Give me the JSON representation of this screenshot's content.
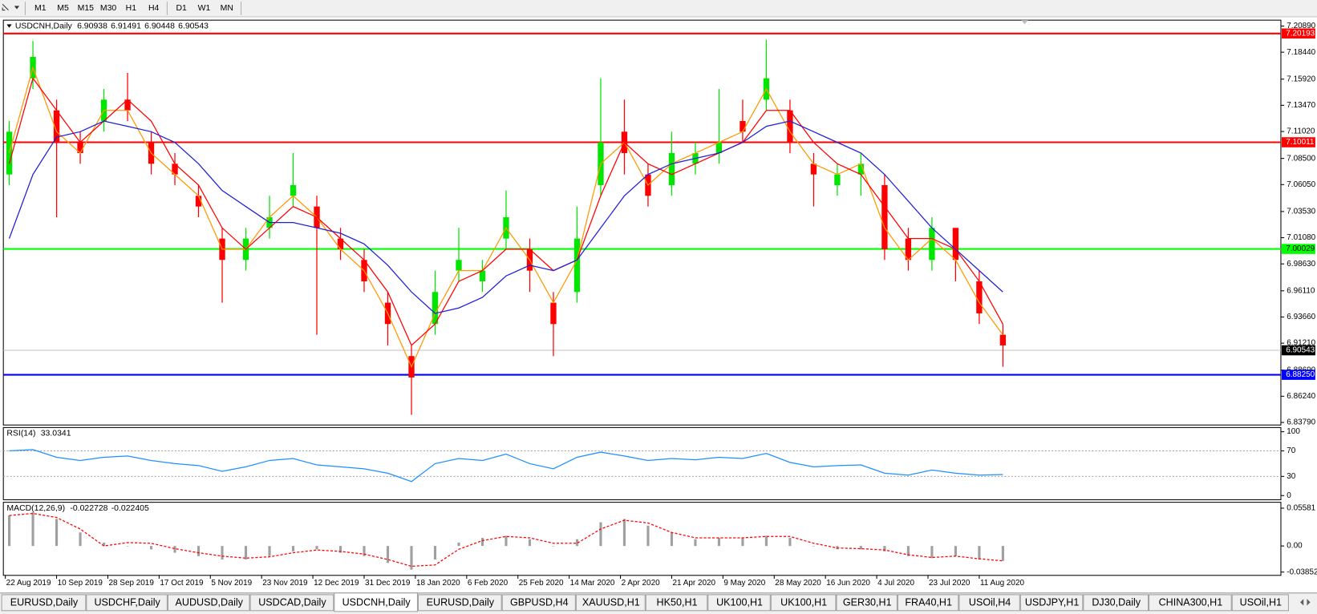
{
  "toolbar": {
    "periods": [
      "M1",
      "M5",
      "M15",
      "M30",
      "H1",
      "H4",
      "D1",
      "W1",
      "MN"
    ]
  },
  "chart_data": [
    {
      "type": "candlestick",
      "title": "USDCNH,Daily",
      "header_values": [
        6.90938,
        6.91491,
        6.90448,
        6.90543
      ],
      "x": [
        1,
        7,
        13,
        19,
        25,
        31,
        37,
        43,
        49,
        55,
        61,
        67,
        73,
        79,
        85,
        91,
        97,
        103,
        109,
        115,
        121,
        127,
        133,
        139,
        145,
        151,
        157,
        163,
        169,
        175,
        181,
        187,
        193,
        199,
        205,
        211,
        217,
        223,
        229,
        235,
        241,
        247,
        253
      ],
      "open": [
        7.07,
        7.16,
        7.13,
        7.1,
        7.12,
        7.14,
        7.1,
        7.08,
        7.05,
        7.01,
        6.99,
        7.02,
        7.05,
        7.04,
        7.01,
        6.99,
        6.95,
        6.9,
        6.93,
        6.98,
        6.97,
        7.01,
        7.0,
        6.95,
        6.96,
        7.06,
        7.11,
        7.07,
        7.06,
        7.08,
        7.09,
        7.12,
        7.14,
        7.13,
        7.08,
        7.06,
        7.07,
        7.06,
        7.01,
        6.99,
        7.02,
        6.97,
        6.92
      ],
      "high": [
        7.12,
        7.195,
        7.14,
        7.11,
        7.15,
        7.165,
        7.11,
        7.09,
        7.06,
        7.02,
        7.02,
        7.05,
        7.09,
        7.05,
        7.02,
        7.0,
        6.96,
        6.91,
        6.98,
        7.02,
        6.99,
        7.055,
        7.01,
        6.96,
        7.04,
        7.16,
        7.14,
        7.08,
        7.11,
        7.1,
        7.15,
        7.14,
        7.196,
        7.14,
        7.09,
        7.08,
        7.09,
        7.07,
        7.02,
        7.03,
        7.02,
        6.98,
        6.93
      ],
      "low": [
        7.06,
        7.15,
        7.03,
        7.08,
        7.11,
        7.12,
        7.07,
        7.06,
        7.03,
        6.95,
        6.98,
        7.01,
        7.04,
        6.92,
        6.99,
        6.96,
        6.91,
        6.845,
        6.92,
        6.97,
        6.96,
        7.0,
        6.96,
        6.9,
        6.95,
        7.05,
        7.07,
        7.04,
        7.05,
        7.07,
        7.08,
        7.1,
        7.13,
        7.09,
        7.04,
        7.05,
        7.05,
        6.99,
        6.98,
        6.98,
        6.97,
        6.93,
        6.89
      ],
      "close": [
        7.11,
        7.18,
        7.1,
        7.09,
        7.14,
        7.13,
        7.08,
        7.07,
        7.04,
        6.99,
        7.01,
        7.03,
        7.06,
        7.02,
        7.0,
        6.97,
        6.93,
        6.88,
        6.96,
        6.99,
        6.98,
        7.03,
        6.98,
        6.93,
        7.01,
        7.1,
        7.09,
        7.05,
        7.09,
        7.09,
        7.1,
        7.11,
        7.16,
        7.1,
        7.07,
        7.07,
        7.08,
        7.0,
        6.99,
        7.02,
        6.99,
        6.94,
        6.91
      ],
      "up_color": "#00e600",
      "down_color": "#ff0000",
      "series": [
        {
          "color": "#ff9900",
          "values": [
            7.09,
            7.17,
            7.11,
            7.09,
            7.13,
            7.13,
            7.09,
            7.07,
            7.05,
            7.0,
            7.0,
            7.03,
            7.05,
            7.03,
            7.0,
            6.98,
            6.94,
            6.89,
            6.94,
            6.98,
            6.98,
            7.02,
            6.99,
            6.95,
            6.99,
            7.08,
            7.1,
            7.06,
            7.08,
            7.09,
            7.1,
            7.11,
            7.15,
            7.11,
            7.08,
            7.07,
            7.08,
            7.02,
            6.99,
            7.01,
            6.99,
            6.95,
            6.92
          ]
        },
        {
          "color": "#ff0000",
          "values": [
            7.08,
            7.16,
            7.13,
            7.1,
            7.12,
            7.14,
            7.12,
            7.08,
            7.06,
            7.02,
            7.0,
            7.02,
            7.04,
            7.03,
            7.01,
            6.99,
            6.96,
            6.91,
            6.93,
            6.97,
            6.98,
            7.0,
            7.0,
            6.98,
            6.99,
            7.05,
            7.1,
            7.08,
            7.07,
            7.08,
            7.09,
            7.1,
            7.13,
            7.13,
            7.1,
            7.08,
            7.07,
            7.04,
            7.01,
            7.01,
            7.0,
            6.97,
            6.93
          ]
        },
        {
          "color": "#1f1fd6",
          "values": [
            7.01,
            7.07,
            7.105,
            7.11,
            7.12,
            7.115,
            7.11,
            7.1,
            7.08,
            7.055,
            7.04,
            7.025,
            7.025,
            7.02,
            7.015,
            7.005,
            6.985,
            6.96,
            6.94,
            6.945,
            6.955,
            6.975,
            6.985,
            6.98,
            6.99,
            7.02,
            7.05,
            7.07,
            7.08,
            7.085,
            7.09,
            7.1,
            7.115,
            7.12,
            7.11,
            7.1,
            7.09,
            7.07,
            7.045,
            7.02,
            7.0,
            6.98,
            6.96
          ]
        }
      ],
      "xlim": [
        -0.5,
        323.5
      ],
      "xticks": [
        {
          "value": 0,
          "label": "22 Aug 2019"
        },
        {
          "value": 13,
          "label": "10 Sep 2019"
        },
        {
          "value": 26,
          "label": "28 Sep 2019"
        },
        {
          "value": 39,
          "label": "17 Oct 2019"
        },
        {
          "value": 52,
          "label": "5 Nov 2019"
        },
        {
          "value": 65,
          "label": "23 Nov 2019"
        },
        {
          "value": 78,
          "label": "12 Dec 2019"
        },
        {
          "value": 91,
          "label": "31 Dec 2019"
        },
        {
          "value": 104,
          "label": "18 Jan 2020"
        },
        {
          "value": 117,
          "label": "6 Feb 2020"
        },
        {
          "value": 130,
          "label": "25 Feb 2020"
        },
        {
          "value": 143,
          "label": "14 Mar 2020"
        },
        {
          "value": 156,
          "label": "2 Apr 2020"
        },
        {
          "value": 169,
          "label": "21 Apr 2020"
        },
        {
          "value": 182,
          "label": "9 May 2020"
        },
        {
          "value": 195,
          "label": "28 May 2020"
        },
        {
          "value": 208,
          "label": "16 Jun 2020"
        },
        {
          "value": 221,
          "label": "4 Jul 2020"
        },
        {
          "value": 234,
          "label": "23 Jul 2020"
        },
        {
          "value": 247,
          "label": "11 Aug 2020"
        }
      ],
      "ylim": [
        6.8355,
        7.2144
      ],
      "yticks": [
        {
          "value": 7.2089,
          "label": "7.20890"
        },
        {
          "value": 7.1844,
          "label": "7.18440"
        },
        {
          "value": 7.1592,
          "label": "7.15920"
        },
        {
          "value": 7.1347,
          "label": "7.13470"
        },
        {
          "value": 7.1102,
          "label": "7.11020"
        },
        {
          "value": 7.085,
          "label": "7.08500"
        },
        {
          "value": 7.0605,
          "label": "7.06050"
        },
        {
          "value": 7.0353,
          "label": "7.03530"
        },
        {
          "value": 7.0108,
          "label": "7.01080"
        },
        {
          "value": 6.9863,
          "label": "6.98630"
        },
        {
          "value": 6.9611,
          "label": "6.96110"
        },
        {
          "value": 6.9366,
          "label": "6.93660"
        },
        {
          "value": 6.9121,
          "label": "6.91210"
        },
        {
          "value": 6.8869,
          "label": "6.88690"
        },
        {
          "value": 6.8624,
          "label": "6.86240"
        },
        {
          "value": 6.8379,
          "label": "6.83790"
        }
      ],
      "hlines": [
        {
          "value": 7.20193,
          "color": "#ff0000",
          "text_color": "#ffffff"
        },
        {
          "value": 7.10011,
          "color": "#ff0000",
          "text_color": "#ffffff"
        },
        {
          "value": 7.00029,
          "color": "#00ff00",
          "text_color": "#000000"
        },
        {
          "value": {
            "value": 6.8825,
            "label": "6.88250"
          },
          "color": "#0000ff",
          "text_color": "#ffffff"
        }
      ],
      "current_price": {
        "value": 6.90543,
        "color": "#c0c0c0",
        "label_color": "#000000",
        "text_color": "#ffffff"
      }
    },
    {
      "type": "line",
      "title": "RSI(14)",
      "header_values": [
        33.0341
      ],
      "x": [
        1,
        7,
        13,
        19,
        25,
        31,
        37,
        43,
        49,
        55,
        61,
        67,
        73,
        79,
        85,
        91,
        97,
        103,
        109,
        115,
        121,
        127,
        133,
        139,
        145,
        151,
        157,
        163,
        169,
        175,
        181,
        187,
        193,
        199,
        205,
        211,
        217,
        223,
        229,
        235,
        241,
        247,
        253
      ],
      "series": [
        {
          "color": "#1e90ff",
          "values": [
            70,
            72,
            60,
            55,
            60,
            62,
            55,
            50,
            47,
            38,
            45,
            55,
            58,
            48,
            45,
            42,
            35,
            22,
            50,
            58,
            55,
            65,
            50,
            42,
            60,
            68,
            62,
            55,
            58,
            56,
            60,
            58,
            66,
            52,
            45,
            47,
            48,
            35,
            32,
            40,
            35,
            32,
            33
          ]
        }
      ],
      "xlim": [
        -0.5,
        323.5
      ],
      "ylim": [
        -6.6,
        106.6
      ],
      "yticks": [
        0,
        30,
        70,
        100
      ],
      "levels": [
        30,
        70
      ]
    },
    {
      "type": "macd",
      "title": "MACD(12,26,9)",
      "header_values": [
        -0.022728,
        -0.022405
      ],
      "x": [
        1,
        7,
        13,
        19,
        25,
        31,
        37,
        43,
        49,
        55,
        61,
        67,
        73,
        79,
        85,
        91,
        97,
        103,
        109,
        115,
        121,
        127,
        133,
        139,
        145,
        151,
        157,
        163,
        169,
        175,
        181,
        187,
        193,
        199,
        205,
        211,
        217,
        223,
        229,
        235,
        241,
        247,
        253
      ],
      "histogram": [
        0.045,
        0.05,
        0.04,
        0.02,
        0.005,
        0.0,
        -0.005,
        -0.01,
        -0.015,
        -0.02,
        -0.02,
        -0.015,
        -0.008,
        -0.005,
        -0.01,
        -0.015,
        -0.025,
        -0.035,
        -0.02,
        0.005,
        0.012,
        0.015,
        0.01,
        0.0,
        0.01,
        0.035,
        0.04,
        0.03,
        0.02,
        0.01,
        0.012,
        0.012,
        0.015,
        0.012,
        0.0,
        -0.005,
        -0.005,
        -0.008,
        -0.015,
        -0.018,
        -0.015,
        -0.02,
        -0.022
      ],
      "histogram_color": "#a0a0a0",
      "series": [
        {
          "color": "#ff0000",
          "values": [
            0.045,
            0.048,
            0.042,
            0.025,
            0.0,
            0.005,
            0.004,
            -0.004,
            -0.01,
            -0.015,
            -0.018,
            -0.016,
            -0.01,
            -0.006,
            -0.008,
            -0.012,
            -0.02,
            -0.03,
            -0.028,
            -0.005,
            0.008,
            0.014,
            0.012,
            0.004,
            0.004,
            0.025,
            0.038,
            0.034,
            0.02,
            0.012,
            0.012,
            0.012,
            0.014,
            0.014,
            0.004,
            -0.003,
            -0.004,
            -0.006,
            -0.013,
            -0.017,
            -0.015,
            -0.019,
            -0.022
          ]
        }
      ],
      "xlim": [
        -0.5,
        323.5
      ],
      "ylim": [
        -0.0434,
        0.0645
      ],
      "yticks": [
        {
          "value": 0.05581,
          "label": "0.05581"
        },
        {
          "value": 0,
          "label": "0.00"
        },
        {
          "value": -0.038524,
          "label": "-0.038524"
        }
      ]
    }
  ],
  "tabs": {
    "items": [
      "EURUSD,Daily",
      "USDCHF,Daily",
      "AUDUSD,Daily",
      "USDCAD,Daily",
      "USDCNH,Daily",
      "EURUSD,Daily",
      "GBPUSD,H4",
      "XAUUSD,H1",
      "HK50,H1",
      "UK100,H1",
      "UK100,H1",
      "GER30,H1",
      "FRA40,H1",
      "USOil,H4",
      "USDJPY,H1",
      "DJ30,Daily",
      "CHINA300,H1",
      "USOil,H1"
    ],
    "active": 4
  }
}
